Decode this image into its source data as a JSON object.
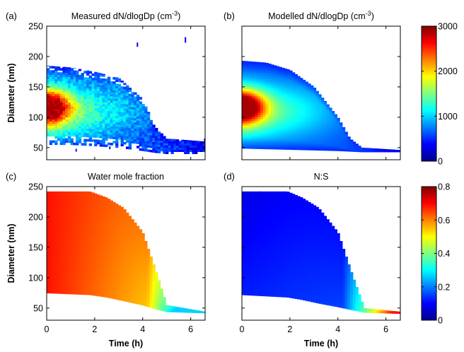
{
  "chart_data": [
    {
      "panel": "(a)",
      "type": "heatmap",
      "title": "Measured dN/dlogDp (cm",
      "title_sup": "-3",
      "title_end": ")",
      "xlabel": "",
      "ylabel": "Diameter (nm)",
      "xlim": [
        0,
        6.6
      ],
      "ylim": [
        30,
        250
      ],
      "xticks": [],
      "yticks": [
        50,
        100,
        150,
        200,
        250
      ],
      "colorbar": "cb1",
      "mode": "measured",
      "t_end": 6.6,
      "profile": {
        "time_h": [
          0,
          1,
          2,
          3,
          4,
          4.5,
          5,
          6.6
        ],
        "upper_diameter_nm": [
          185,
          182,
          175,
          165,
          130,
          85,
          65,
          60
        ],
        "lower_diameter_nm": [
          55,
          55,
          53,
          50,
          45,
          42,
          40,
          40
        ],
        "peak_diameter_nm": 118,
        "peak_value_cm3": 3000
      }
    },
    {
      "panel": "(b)",
      "type": "heatmap",
      "title": "Modelled dN/dlogDp (cm",
      "title_sup": "-3",
      "title_end": ")",
      "xlabel": "",
      "ylabel": "",
      "xlim": [
        0,
        6.6
      ],
      "ylim": [
        30,
        250
      ],
      "xticks": [],
      "yticks": [],
      "colorbar": "cb1",
      "mode": "modelled",
      "t_end": 6.6,
      "profile": {
        "time_h": [
          0,
          1,
          2,
          3,
          4,
          4.5,
          5,
          6.6
        ],
        "upper_diameter_nm": [
          193,
          190,
          178,
          150,
          100,
          65,
          50,
          46
        ],
        "lower_diameter_nm": [
          49,
          48,
          47,
          46,
          45,
          44,
          43,
          43
        ],
        "peak_diameter_nm": 118,
        "peak_value_cm3": 2700
      }
    },
    {
      "panel": "(c)",
      "type": "heatmap",
      "title": "Water mole fraction",
      "xlabel": "Time (h)",
      "ylabel": "Diameter (nm)",
      "xlim": [
        0,
        6.6
      ],
      "ylim": [
        30,
        250
      ],
      "xticks": [
        "0",
        "2",
        "4",
        "6"
      ],
      "yticks": [
        50,
        100,
        150,
        200,
        250
      ],
      "colorbar": "cb2",
      "mode": "water",
      "t_end": 6.6,
      "profile": {
        "time_h": [
          0,
          1.8,
          2.5,
          3.2,
          4,
          4.6,
          5,
          6.6
        ],
        "upper_diameter_nm": [
          242,
          242,
          232,
          215,
          175,
          105,
          55,
          44
        ],
        "lower_diameter_nm": [
          75,
          72,
          68,
          62,
          55,
          48,
          44,
          42
        ],
        "value_range": [
          0.1,
          0.7
        ]
      }
    },
    {
      "panel": "(d)",
      "type": "heatmap",
      "title": "N:S",
      "xlabel": "Time (h)",
      "ylabel": "",
      "xlim": [
        0,
        6.6
      ],
      "ylim": [
        30,
        250
      ],
      "xticks": [
        "0",
        "2",
        "4",
        "6"
      ],
      "yticks": [],
      "colorbar": "cb2",
      "mode": "ns",
      "t_end": 6.6,
      "profile": {
        "time_h": [
          0,
          1.9,
          2.5,
          3.2,
          4,
          4.6,
          5.1,
          6.6
        ],
        "upper_diameter_nm": [
          242,
          242,
          232,
          215,
          175,
          105,
          50,
          44
        ],
        "lower_diameter_nm": [
          72,
          68,
          64,
          58,
          52,
          47,
          43,
          41
        ],
        "value_range": [
          0.05,
          0.6
        ]
      }
    }
  ],
  "colorbars": {
    "cb1": {
      "range": [
        0,
        3000
      ],
      "ticks": [
        "0",
        "1000",
        "2000",
        "3000"
      ],
      "tick_values": [
        0,
        1000,
        2000,
        3000
      ]
    },
    "cb2": {
      "range": [
        0,
        0.8
      ],
      "ticks": [
        "0",
        "0.2",
        "0.4",
        "0.6",
        "0.8"
      ],
      "tick_values": [
        0,
        0.2,
        0.4,
        0.6,
        0.8
      ]
    }
  },
  "colors": {
    "axis": "#000000",
    "background": "#ffffff",
    "colormap": "jet"
  }
}
